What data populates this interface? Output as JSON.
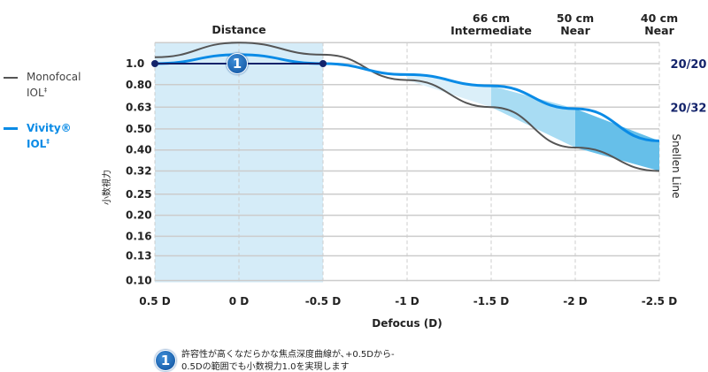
{
  "chart_data": {
    "type": "line",
    "xlabel": "Defocus (D)",
    "ylabel": "小数視力",
    "x": [
      0.5,
      0,
      -0.5,
      -1,
      -1.5,
      -2,
      -2.5
    ],
    "x_tick_labels": [
      "0.5 D",
      "0 D",
      "-0.5 D",
      "-1 D",
      "-1.5 D",
      "-2 D",
      "-2.5 D"
    ],
    "y_ticks": [
      1.0,
      0.8,
      0.63,
      0.5,
      0.4,
      0.32,
      0.25,
      0.2,
      0.16,
      0.13,
      0.1
    ],
    "y_tick_labels": [
      "1.0",
      "0.80",
      "0.63",
      "0.50",
      "0.40",
      "0.32",
      "0.25",
      "0.20",
      "0.16",
      "0.13",
      "0.10"
    ],
    "y_scale": "log",
    "ylim": [
      0.1,
      1.25
    ],
    "grid": true,
    "series": [
      {
        "name": "Monofocal IOL",
        "superscript": "‡",
        "color": "#555555",
        "values": [
          1.07,
          1.25,
          1.1,
          0.84,
          0.63,
          0.41,
          0.32
        ]
      },
      {
        "name": "Vivity® IOL",
        "superscript": "‡",
        "color": "#0a8be6",
        "values": [
          1.0,
          1.1,
          1.0,
          0.89,
          0.79,
          0.62,
          0.44
        ]
      }
    ],
    "distance_labels": [
      {
        "x": 0,
        "lines": [
          "Distance"
        ]
      },
      {
        "x": -1.5,
        "lines": [
          "66 cm",
          "Intermediate"
        ]
      },
      {
        "x": -2,
        "lines": [
          "50 cm",
          "Near"
        ]
      },
      {
        "x": -2.5,
        "lines": [
          "40 cm",
          "Near"
        ]
      }
    ],
    "snellen": {
      "title": "Snellen Line",
      "labels": [
        {
          "y": 1.0,
          "text": "20/20"
        },
        {
          "y": 0.63,
          "text": "20/32"
        }
      ]
    },
    "highlight_range": [
      0.5,
      -0.5
    ],
    "highlight_level": 1.0,
    "annotation": {
      "marker": "1",
      "text_lines": [
        "許容性が高くなだらかな焦点深度曲線が､+0.5Dから-",
        "0.5Dの範囲でも小数視力1.0を実現します"
      ]
    }
  }
}
